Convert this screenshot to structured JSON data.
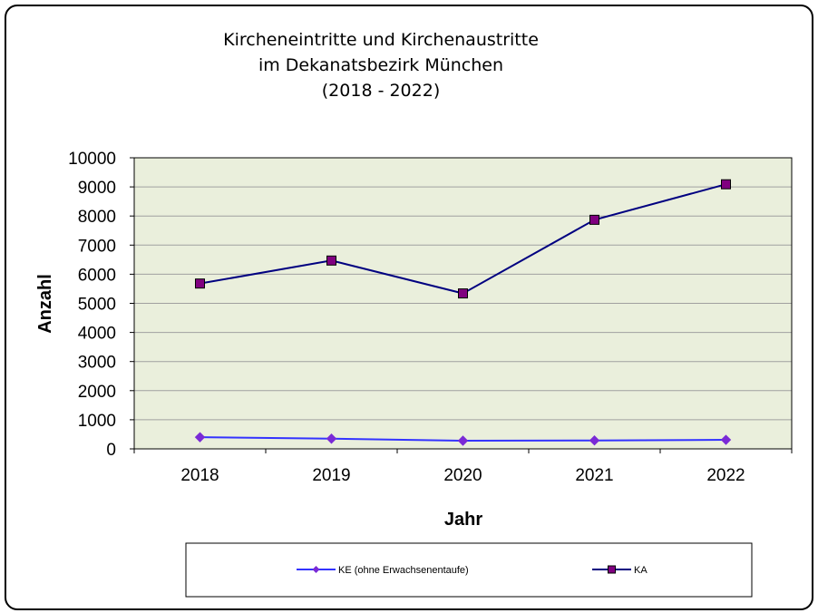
{
  "chart_data": {
    "type": "line",
    "title_lines": [
      "Kircheneintritte und Kirchenaustritte",
      "im Dekanatsbezirk München",
      "(2018 - 2022)"
    ],
    "xlabel": "Jahr",
    "ylabel": "Anzahl",
    "categories": [
      "2018",
      "2019",
      "2020",
      "2021",
      "2022"
    ],
    "ylim": [
      0,
      10000
    ],
    "yticks": [
      0,
      1000,
      2000,
      3000,
      4000,
      5000,
      6000,
      7000,
      8000,
      9000,
      10000
    ],
    "grid": true,
    "legend_position": "bottom",
    "series": [
      {
        "name": "KE (ohne Erwachsenentaufe)",
        "values": [
          400,
          350,
          280,
          290,
          310
        ],
        "color": "#3333ff",
        "marker": "diamond",
        "marker_color": "#7a2ad6"
      },
      {
        "name": "KA",
        "values": [
          5680,
          6470,
          5340,
          7870,
          9090
        ],
        "color": "#000080",
        "marker": "square",
        "marker_color": "#800080"
      }
    ],
    "colors": {
      "plot_background": "#eaefdc",
      "gridline": "#a0a0a0",
      "frame": "#000000"
    }
  }
}
